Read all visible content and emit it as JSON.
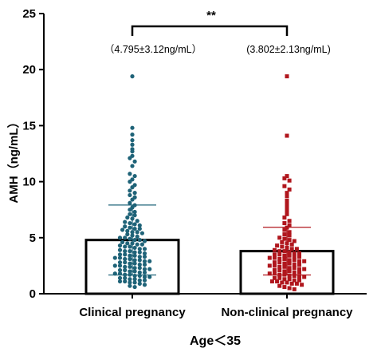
{
  "chart_data": {
    "type": "bar",
    "categories": [
      "Clinical pregnancy",
      "Non-clinical pregnancy"
    ],
    "series": [
      {
        "values": [
          4.795,
          3.802
        ]
      }
    ],
    "error_sd": [
      3.12,
      2.13
    ],
    "annotations": [
      "（4.795±3.12ng/mL）",
      "(3.802±2.13ng/mL)"
    ],
    "significance": "**",
    "ylabel": "AMH（ng/mL）",
    "xlabel": "Age＜35",
    "ylim": [
      0,
      25
    ],
    "yticks": [
      0,
      5,
      10,
      15,
      20,
      25
    ],
    "colors": {
      "clinical": "#1f6378",
      "non_clinical": "#b0161d",
      "bar_edge": "#000000"
    },
    "points": [
      [
        19.4,
        14.8,
        14.2,
        13.7,
        13.3,
        12.9,
        12.7,
        12.3,
        12.1,
        11.8,
        11.4,
        10.7,
        10.5,
        10.2,
        10.0,
        9.7,
        9.5,
        9.2,
        9.0,
        8.8,
        8.6,
        8.4,
        8.1,
        7.9,
        7.7,
        7.5,
        7.3,
        7.1,
        7.0,
        6.8,
        6.7,
        6.5,
        6.4,
        6.3,
        6.2,
        6.1,
        6.0,
        5.9,
        5.8,
        5.8,
        5.7,
        5.6,
        5.5,
        5.5,
        5.4,
        5.3,
        5.2,
        5.1,
        5.0,
        5.0,
        4.9,
        4.8,
        4.8,
        4.7,
        4.6,
        4.5,
        4.5,
        4.4,
        4.4,
        4.3,
        4.2,
        4.2,
        4.1,
        4.0,
        4.0,
        3.9,
        3.8,
        3.8,
        3.7,
        3.7,
        3.6,
        3.5,
        3.5,
        3.4,
        3.4,
        3.3,
        3.3,
        3.2,
        3.2,
        3.1,
        3.1,
        3.0,
        3.0,
        2.9,
        2.9,
        2.8,
        2.8,
        2.7,
        2.7,
        2.6,
        2.6,
        2.5,
        2.5,
        2.4,
        2.4,
        2.3,
        2.3,
        2.2,
        2.2,
        2.1,
        2.1,
        2.0,
        2.0,
        1.9,
        1.9,
        1.8,
        1.8,
        1.7,
        1.7,
        1.6,
        1.6,
        1.5,
        1.5,
        1.4,
        1.4,
        1.3,
        1.3,
        1.2,
        1.2,
        1.1,
        1.1,
        1.0,
        1.0,
        0.9,
        0.8,
        0.7,
        0.6
      ],
      [
        19.4,
        14.1,
        10.5,
        10.3,
        10.1,
        9.6,
        9.3,
        9.0,
        8.7,
        8.3,
        8.0,
        7.7,
        7.4,
        7.1,
        6.8,
        6.5,
        6.3,
        6.1,
        5.9,
        5.7,
        5.5,
        5.3,
        5.2,
        5.0,
        4.9,
        4.8,
        4.7,
        4.6,
        4.5,
        4.4,
        4.3,
        4.2,
        4.1,
        4.0,
        4.0,
        3.9,
        3.8,
        3.8,
        3.7,
        3.6,
        3.6,
        3.5,
        3.5,
        3.4,
        3.4,
        3.3,
        3.3,
        3.2,
        3.2,
        3.1,
        3.1,
        3.0,
        3.0,
        2.9,
        2.9,
        2.8,
        2.8,
        2.7,
        2.7,
        2.6,
        2.6,
        2.5,
        2.5,
        2.4,
        2.4,
        2.3,
        2.3,
        2.2,
        2.2,
        2.1,
        2.1,
        2.0,
        2.0,
        1.9,
        1.9,
        1.8,
        1.8,
        1.7,
        1.7,
        1.6,
        1.6,
        1.5,
        1.5,
        1.4,
        1.4,
        1.3,
        1.3,
        1.2,
        1.2,
        1.1,
        1.1,
        1.0,
        1.0,
        0.9,
        0.9,
        0.8,
        0.7,
        0.6,
        0.5,
        0.4
      ]
    ]
  }
}
